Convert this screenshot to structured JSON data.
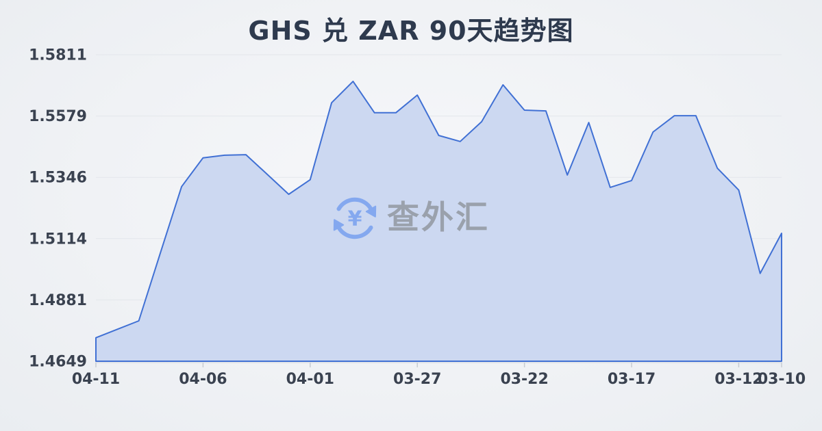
{
  "title": {
    "text": "GHS 兑 ZAR 90天趋势图",
    "color": "#2e3a4e"
  },
  "watermark": {
    "text": "查外汇",
    "icon": "currency-exchange-icon",
    "icon_color": "#84a8ef",
    "text_color": "#9aa1ac",
    "currency_glyph": "¥"
  },
  "chart_data": {
    "type": "area",
    "title": "GHS 兑 ZAR 90天趋势图",
    "x": [
      "04-11",
      "04-10",
      "04-09",
      "04-08",
      "04-07",
      "04-06",
      "04-05",
      "04-04",
      "04-03",
      "04-02",
      "04-01",
      "03-31",
      "03-30",
      "03-29",
      "03-28",
      "03-27",
      "03-26",
      "03-25",
      "03-24",
      "03-23",
      "03-22",
      "03-21",
      "03-20",
      "03-19",
      "03-18",
      "03-17",
      "03-16",
      "03-15",
      "03-14",
      "03-13",
      "03-12",
      "03-11",
      "03-10"
    ],
    "values": [
      1.4738,
      1.477,
      1.4802,
      1.5057,
      1.5311,
      1.542,
      1.543,
      1.5432,
      1.5357,
      1.5282,
      1.5337,
      1.5629,
      1.571,
      1.5591,
      1.5591,
      1.5658,
      1.5505,
      1.5482,
      1.5557,
      1.5697,
      1.5601,
      1.5598,
      1.5355,
      1.5554,
      1.5308,
      1.5334,
      1.5518,
      1.558,
      1.558,
      1.5381,
      1.5298,
      1.4982,
      1.5134
    ],
    "x_label_indices": [
      0,
      5,
      10,
      15,
      20,
      25,
      30,
      32
    ],
    "x_tick_labels_shown": [
      "04-11",
      "04-06",
      "04-01",
      "03-27",
      "03-22",
      "03-17",
      "03-12",
      "03-10"
    ],
    "y_tick_labels": [
      "1.5811",
      "1.5579",
      "1.5346",
      "1.5114",
      "1.4881",
      "1.4649"
    ],
    "ylim": [
      1.4649,
      1.5811
    ],
    "grid": true,
    "legend_position": "none",
    "line_color": "#4070d4",
    "fill_color": "#ccd8f1",
    "grid_color": "#e3e6eb",
    "axis_line_color": "#d2d6dc",
    "tick_color": "#c7ccd3",
    "axis_label_color": "#3a4250"
  }
}
